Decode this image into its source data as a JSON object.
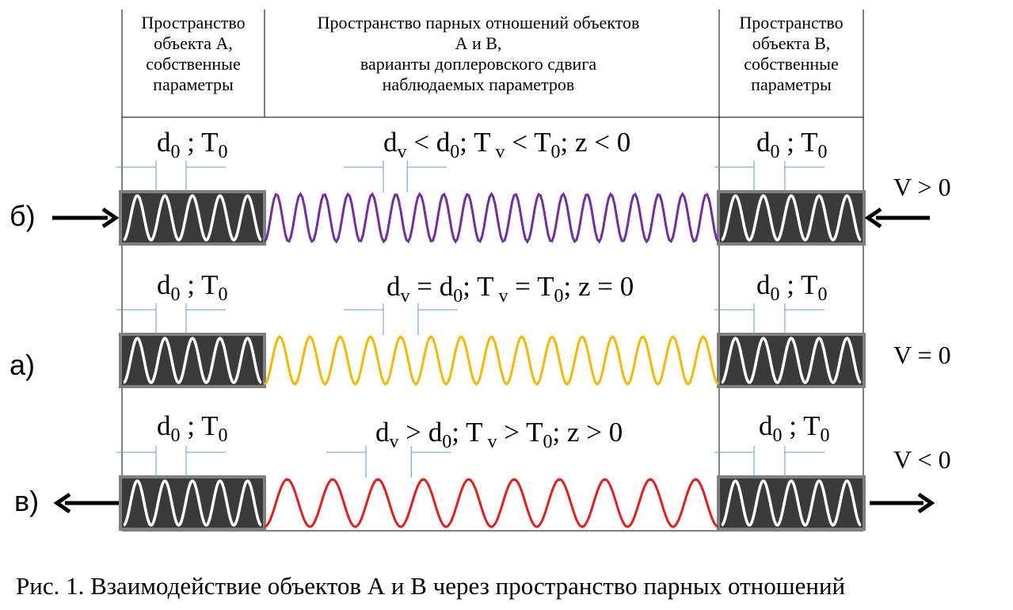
{
  "header": {
    "left": [
      "Пространство",
      "объекта А,",
      "собственные",
      "параметры"
    ],
    "middle": [
      "Пространство парных отношений объектов",
      "А и В,",
      "варианты доплеровского сдвига",
      "наблюдаемых  параметров"
    ],
    "right": [
      "Пространство",
      "объекта В,",
      "собственные",
      "параметры"
    ]
  },
  "rows": [
    {
      "label": "б)",
      "wave_color": "#7030a0",
      "wave_cycles": 19,
      "velocity": "V > 0",
      "middle_formula": {
        "d": "d",
        "d_sub": "v",
        "rel1": " < ",
        "d0": "d",
        "d0_sub": "0",
        "sep1": "; T",
        "t_sub": " v",
        "rel2": " < T",
        "t0_sub": "0",
        "tail": "; z < 0"
      },
      "arrows": {
        "left": "right",
        "right": "left"
      }
    },
    {
      "label": "а)",
      "wave_color": "#f5b800",
      "wave_cycles": 15,
      "velocity": "V = 0",
      "middle_formula": {
        "d": "d",
        "d_sub": "v",
        "rel1": " = ",
        "d0": "d",
        "d0_sub": "0",
        "sep1": "; T",
        "t_sub": " v",
        "rel2": " = T",
        "t0_sub": "0",
        "tail": "; z = 0"
      },
      "arrows": {
        "left": "none",
        "right": "none"
      }
    },
    {
      "label": "в)",
      "wave_color": "#e02020",
      "wave_cycles": 10,
      "velocity": "V < 0",
      "middle_formula": {
        "d": "d",
        "d_sub": "v",
        "rel1": " > ",
        "d0": "d",
        "d0_sub": "0",
        "sep1": "; T",
        "t_sub": " v",
        "rel2": " > T",
        "t0_sub": "0",
        "tail": "; z > 0"
      },
      "arrows": {
        "left": "left",
        "right": "right"
      }
    }
  ],
  "own_params": {
    "d": "d",
    "d_sub": "0",
    "sep": " ; T",
    "t_sub": "0"
  },
  "colors": {
    "box_fill": "#3a3a3a",
    "box_border": "#7f7f7f",
    "white_wave": "#ffffff",
    "measure_line": "#5b9bd5"
  },
  "caption": "Рис. 1. Взаимодействие объектов А и В через пространство парных отношений"
}
